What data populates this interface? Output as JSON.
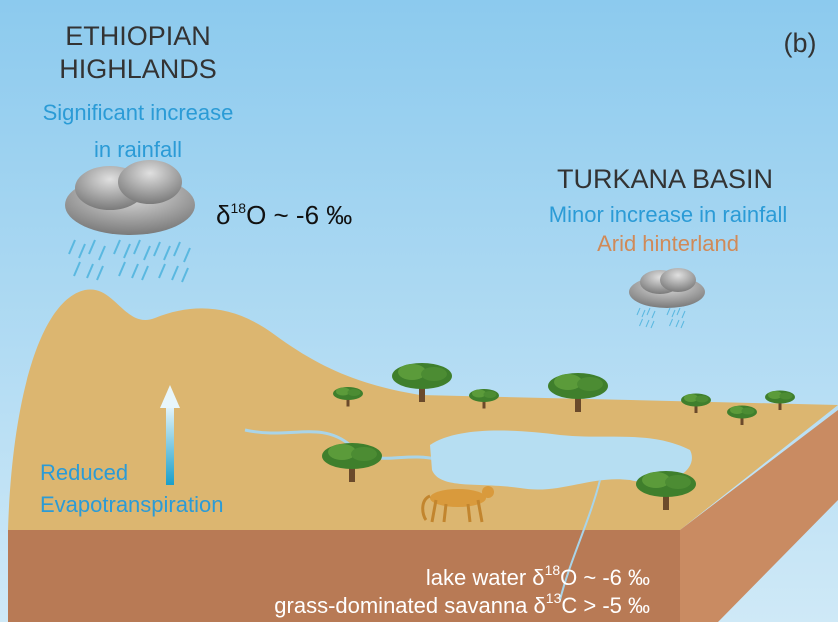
{
  "panel_label": "(b)",
  "highlands": {
    "title": [
      "ETHIOPIAN",
      "HIGHLANDS"
    ],
    "rainfall": [
      "Significant increase",
      "in rainfall"
    ],
    "isotope": {
      "symbol": "δ",
      "mass": "18",
      "rest": "O ~ -6 ‰"
    },
    "evapotranspiration": [
      "Reduced",
      "Evapotranspiration"
    ]
  },
  "basin": {
    "title": "TURKANA BASIN",
    "rainfall": "Minor increase in rainfall",
    "hinterland": "Arid hinterland"
  },
  "soil": {
    "lake_water": {
      "prefix": "lake water δ",
      "mass": "18",
      "rest": "O ~ -6 ‰"
    },
    "savanna": {
      "prefix": "grass-dominated savanna δ",
      "mass": "13",
      "rest": "C > -5 ‰"
    }
  }
}
